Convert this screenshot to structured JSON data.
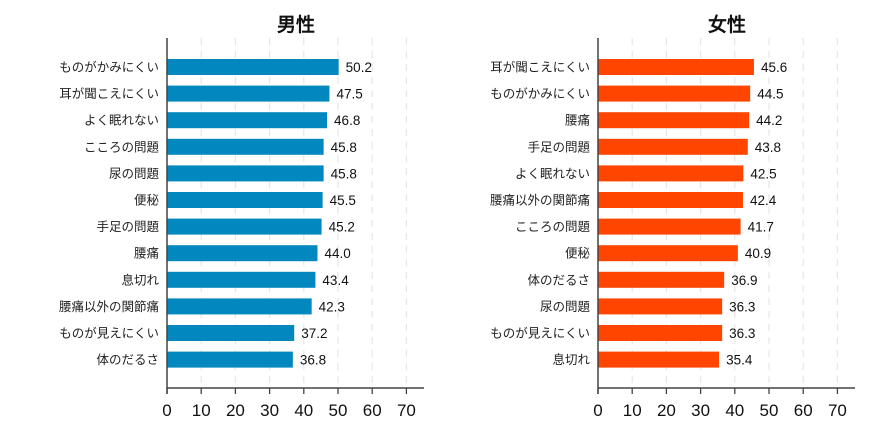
{
  "chart_data": [
    {
      "type": "bar",
      "orientation": "horizontal",
      "title": "男性",
      "color": "#0288BE",
      "categories": [
        "ものがかみにくい",
        "耳が聞こえにくい",
        "よく眠れない",
        "こころの問題",
        "尿の問題",
        "便秘",
        "手足の問題",
        "腰痛",
        "息切れ",
        "腰痛以外の関節痛",
        "ものが見えにくい",
        "体のだるさ"
      ],
      "values": [
        50.2,
        47.5,
        46.8,
        45.8,
        45.8,
        45.5,
        45.2,
        44.0,
        43.4,
        42.3,
        37.2,
        36.8
      ],
      "value_labels": [
        "50.2",
        "47.5",
        "46.8",
        "45.8",
        "45.8",
        "45.5",
        "45.2",
        "44.0",
        "43.4",
        "42.3",
        "37.2",
        "36.8"
      ],
      "xlim": [
        0,
        75
      ],
      "xticks": [
        "0",
        "10",
        "20",
        "30",
        "40",
        "50",
        "60",
        "70"
      ],
      "grid": "vertical dashed",
      "xlabel": "",
      "ylabel": ""
    },
    {
      "type": "bar",
      "orientation": "horizontal",
      "title": "女性",
      "color": "#FF4500",
      "categories": [
        "耳が聞こえにくい",
        "ものがかみにくい",
        "腰痛",
        "手足の問題",
        "よく眠れない",
        "腰痛以外の関節痛",
        "こころの問題",
        "便秘",
        "体のだるさ",
        "尿の問題",
        "ものが見えにくい",
        "息切れ"
      ],
      "values": [
        45.6,
        44.5,
        44.2,
        43.8,
        42.5,
        42.4,
        41.7,
        40.9,
        36.9,
        36.3,
        36.3,
        35.4
      ],
      "value_labels": [
        "45.6",
        "44.5",
        "44.2",
        "43.8",
        "42.5",
        "42.4",
        "41.7",
        "40.9",
        "36.9",
        "36.3",
        "36.3",
        "35.4"
      ],
      "xlim": [
        0,
        75
      ],
      "xticks": [
        "0",
        "10",
        "20",
        "30",
        "40",
        "50",
        "60",
        "70"
      ],
      "grid": "vertical dashed",
      "xlabel": "",
      "ylabel": ""
    }
  ]
}
